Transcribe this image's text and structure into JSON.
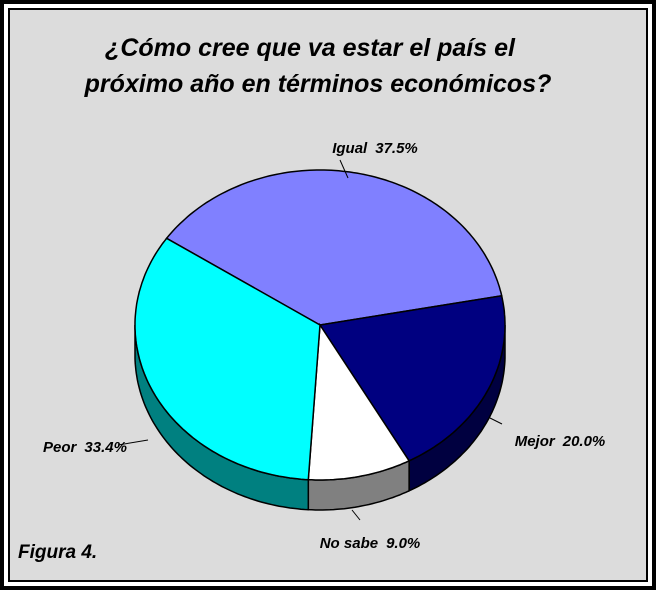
{
  "chart_data": {
    "type": "pie",
    "title": [
      "¿Cómo cree que va estar el país el",
      "próximo año en términos económicos?"
    ],
    "categories": [
      "Igual",
      "Mejor",
      "No sabe",
      "Peor"
    ],
    "values": [
      37.5,
      20.0,
      9.0,
      33.4
    ],
    "value_labels": [
      "37.5%",
      "20.0%",
      "9.0%",
      "33.4%"
    ],
    "colors": [
      "#8080ff",
      "#000080",
      "#ffffff",
      "#00ffff"
    ],
    "annotations": [
      "Figura 4."
    ]
  }
}
